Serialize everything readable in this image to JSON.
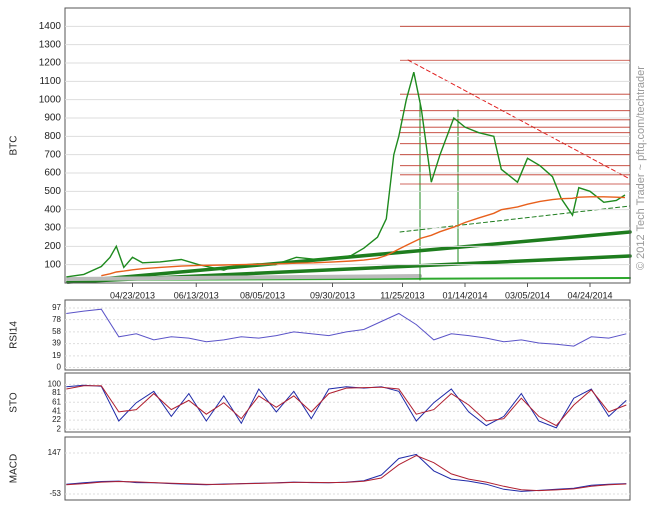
{
  "chart_data": [
    {
      "type": "line",
      "ylabel": "BTC",
      "watermark": "© 2012 Tech Trader ~ pftq.com/techtrader",
      "xlim": [
        "2013-02-28",
        "2014-05-26"
      ],
      "xticks": [
        {
          "value": "2013-04-23",
          "label": "04/23/2013"
        },
        {
          "value": "2013-06-13",
          "label": "06/13/2013"
        },
        {
          "value": "2013-08-05",
          "label": "08/05/2013"
        },
        {
          "value": "2013-09-30",
          "label": "09/30/2013"
        },
        {
          "value": "2013-11-25",
          "label": "11/25/2013"
        },
        {
          "value": "2014-01-14",
          "label": "01/14/2014"
        },
        {
          "value": "2014-03-05",
          "label": "03/05/2014"
        },
        {
          "value": "2014-04-24",
          "label": "04/24/2014"
        }
      ],
      "ylim": [
        0,
        1500
      ],
      "yticks": [
        100,
        200,
        300,
        400,
        500,
        600,
        700,
        800,
        900,
        1000,
        1100,
        1200,
        1300,
        1400
      ],
      "grid": true,
      "levels": [
        1400,
        1215,
        1030,
        940,
        890,
        850,
        820,
        760,
        700,
        640,
        590,
        540
      ],
      "levels_color": "#c0392b",
      "x": [
        "2013-03-01",
        "2013-03-15",
        "2013-03-29",
        "2013-04-05",
        "2013-04-10",
        "2013-04-16",
        "2013-04-23",
        "2013-05-01",
        "2013-05-15",
        "2013-06-01",
        "2013-06-15",
        "2013-07-05",
        "2013-07-15",
        "2013-08-01",
        "2013-08-15",
        "2013-09-01",
        "2013-09-15",
        "2013-10-01",
        "2013-10-15",
        "2013-10-25",
        "2013-11-05",
        "2013-11-12",
        "2013-11-18",
        "2013-11-22",
        "2013-11-28",
        "2013-12-04",
        "2013-12-10",
        "2013-12-18",
        "2013-12-25",
        "2014-01-05",
        "2014-01-14",
        "2014-01-25",
        "2014-02-06",
        "2014-02-12",
        "2014-02-25",
        "2014-03-05",
        "2014-03-15",
        "2014-03-25",
        "2014-04-01",
        "2014-04-10",
        "2014-04-15",
        "2014-04-24",
        "2014-05-05",
        "2014-05-15",
        "2014-05-22"
      ],
      "series": [
        {
          "color": "#1e8a1e",
          "values": [
            33,
            47,
            90,
            140,
            200,
            85,
            140,
            110,
            115,
            128,
            100,
            70,
            95,
            105,
            100,
            140,
            130,
            130,
            150,
            190,
            250,
            350,
            700,
            800,
            1000,
            1150,
            950,
            550,
            700,
            900,
            850,
            820,
            800,
            620,
            550,
            680,
            640,
            580,
            460,
            370,
            520,
            500,
            440,
            450,
            480
          ]
        },
        {
          "color": "#e8601c",
          "values": [
            null,
            null,
            40,
            50,
            60,
            65,
            72,
            78,
            85,
            92,
            96,
            98,
            100,
            102,
            104,
            108,
            110,
            115,
            120,
            125,
            135,
            150,
            170,
            185,
            205,
            225,
            245,
            260,
            280,
            305,
            330,
            355,
            380,
            400,
            415,
            430,
            445,
            455,
            460,
            462,
            468,
            470,
            470,
            468,
            466
          ]
        }
      ]
    },
    {
      "type": "line",
      "ylabel": "RSI14",
      "xlim": [
        "2013-02-28",
        "2014-05-26"
      ],
      "ylim": [
        -4,
        110
      ],
      "yticks": [
        97,
        78,
        58,
        39,
        19,
        0
      ],
      "grid": true,
      "x": [
        "2013-03-01",
        "2013-03-15",
        "2013-03-29",
        "2013-04-12",
        "2013-04-26",
        "2013-05-10",
        "2013-05-24",
        "2013-06-07",
        "2013-06-21",
        "2013-07-05",
        "2013-07-19",
        "2013-08-02",
        "2013-08-16",
        "2013-08-30",
        "2013-09-13",
        "2013-09-27",
        "2013-10-11",
        "2013-10-25",
        "2013-11-08",
        "2013-11-22",
        "2013-12-06",
        "2013-12-20",
        "2014-01-03",
        "2014-01-17",
        "2014-01-31",
        "2014-02-14",
        "2014-02-28",
        "2014-03-14",
        "2014-03-28",
        "2014-04-11",
        "2014-04-25",
        "2014-05-09",
        "2014-05-23"
      ],
      "series": [
        {
          "color": "#5b54c8",
          "values": [
            88,
            92,
            95,
            50,
            55,
            45,
            50,
            48,
            42,
            45,
            50,
            48,
            52,
            58,
            55,
            52,
            58,
            62,
            75,
            88,
            70,
            45,
            55,
            52,
            48,
            42,
            45,
            40,
            38,
            35,
            50,
            48,
            55
          ]
        }
      ]
    },
    {
      "type": "line",
      "ylabel": "STO",
      "xlim": [
        "2013-02-28",
        "2014-05-26"
      ],
      "ylim": [
        -4,
        125
      ],
      "yticks": [
        100,
        81,
        61,
        41,
        22,
        2
      ],
      "grid": true,
      "x": [
        "2013-03-01",
        "2013-03-15",
        "2013-03-29",
        "2013-04-12",
        "2013-04-26",
        "2013-05-10",
        "2013-05-24",
        "2013-06-07",
        "2013-06-21",
        "2013-07-05",
        "2013-07-19",
        "2013-08-02",
        "2013-08-16",
        "2013-08-30",
        "2013-09-13",
        "2013-09-27",
        "2013-10-11",
        "2013-10-25",
        "2013-11-08",
        "2013-11-22",
        "2013-12-06",
        "2013-12-20",
        "2014-01-03",
        "2014-01-17",
        "2014-01-31",
        "2014-02-14",
        "2014-02-28",
        "2014-03-14",
        "2014-03-28",
        "2014-04-11",
        "2014-04-25",
        "2014-05-09",
        "2014-05-23"
      ],
      "series": [
        {
          "color": "#1f2aa8",
          "values": [
            95,
            98,
            96,
            20,
            60,
            85,
            30,
            80,
            20,
            75,
            15,
            90,
            40,
            85,
            25,
            90,
            95,
            92,
            95,
            85,
            20,
            60,
            90,
            40,
            10,
            30,
            80,
            20,
            5,
            70,
            90,
            30,
            65
          ]
        },
        {
          "color": "#b02030",
          "values": [
            90,
            97,
            97,
            40,
            45,
            80,
            45,
            65,
            35,
            60,
            25,
            75,
            50,
            75,
            40,
            80,
            92,
            93,
            94,
            90,
            35,
            45,
            80,
            55,
            20,
            25,
            70,
            30,
            10,
            55,
            88,
            40,
            55
          ]
        }
      ]
    },
    {
      "type": "line",
      "ylabel": "MACD",
      "xlim": [
        "2013-02-28",
        "2014-05-26"
      ],
      "ylim": [
        -82,
        225
      ],
      "yticks": [
        147,
        -53
      ],
      "grid": true,
      "x": [
        "2013-03-01",
        "2013-03-15",
        "2013-03-29",
        "2013-04-12",
        "2013-04-26",
        "2013-05-10",
        "2013-05-24",
        "2013-06-07",
        "2013-06-21",
        "2013-07-05",
        "2013-07-19",
        "2013-08-02",
        "2013-08-16",
        "2013-08-30",
        "2013-09-13",
        "2013-09-27",
        "2013-10-11",
        "2013-10-25",
        "2013-11-08",
        "2013-11-22",
        "2013-12-06",
        "2013-12-20",
        "2014-01-03",
        "2014-01-17",
        "2014-01-31",
        "2014-02-14",
        "2014-02-28",
        "2014-03-14",
        "2014-03-28",
        "2014-04-11",
        "2014-04-25",
        "2014-05-09",
        "2014-05-23"
      ],
      "series": [
        {
          "color": "#1f2aa8",
          "values": [
            -5,
            2,
            8,
            10,
            3,
            2,
            -2,
            -5,
            -8,
            -4,
            -2,
            0,
            2,
            5,
            3,
            2,
            5,
            12,
            40,
            120,
            140,
            60,
            20,
            10,
            -5,
            -30,
            -40,
            -35,
            -30,
            -25,
            -10,
            -5,
            -2
          ]
        },
        {
          "color": "#b02030",
          "values": [
            -8,
            -2,
            5,
            8,
            6,
            3,
            0,
            -3,
            -6,
            -6,
            -3,
            -1,
            1,
            4,
            4,
            3,
            4,
            9,
            25,
            90,
            135,
            100,
            45,
            20,
            5,
            -15,
            -32,
            -36,
            -33,
            -28,
            -15,
            -8,
            -4
          ]
        }
      ]
    }
  ]
}
